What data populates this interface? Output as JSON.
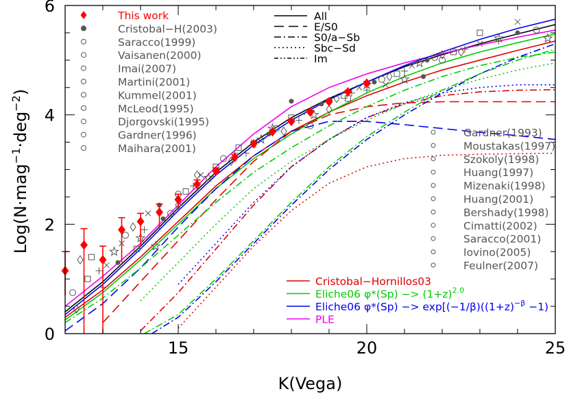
{
  "chart_data": {
    "type": "line",
    "xlabel": "K(Vega)",
    "ylabel_text": "Log(N·mag",
    "ylabel_sup1": "−1",
    "ylabel_mid": "·deg",
    "ylabel_sup2": "−2",
    "ylabel_end": ")",
    "xlim": [
      12,
      25
    ],
    "ylim": [
      0,
      6
    ],
    "xticks": [
      15,
      20,
      25
    ],
    "yticks": [
      0,
      2,
      4,
      6
    ],
    "line_style_legend": [
      "All",
      "E/S0",
      "S0/a−Sb",
      "Sbc−Sd",
      "Im"
    ],
    "model_legend": [
      {
        "label": "Cristobal−Hornillos03",
        "color": "#e00000"
      },
      {
        "label": "Eliche06 φ*(Sp) −> (1+z)^2.0",
        "color": "#00cc00"
      },
      {
        "label": "Eliche06 φ*(Sp) −> exp[(−1/β)((1+z)^−β −1)",
        "color": "#0000ee"
      },
      {
        "label": "PLE",
        "color": "#ee00ee"
      }
    ],
    "legend_left": [
      {
        "label": "This work",
        "color": "#ff0000"
      },
      {
        "label": "Cristobal−H(2003)",
        "color": "#555555"
      },
      {
        "label": "Saracco(1999)",
        "color": "#555555"
      },
      {
        "label": "Vaisanen(2000)",
        "color": "#555555"
      },
      {
        "label": "Imai(2007)",
        "color": "#555555"
      },
      {
        "label": "Martini(2001)",
        "color": "#555555"
      },
      {
        "label": "Kummel(2001)",
        "color": "#555555"
      },
      {
        "label": "McLeod(1995)",
        "color": "#555555"
      },
      {
        "label": "Djorgovski(1995)",
        "color": "#555555"
      },
      {
        "label": "Gardner(1996)",
        "color": "#555555"
      },
      {
        "label": "Maihara(2001)",
        "color": "#555555"
      }
    ],
    "legend_right": [
      {
        "label": "Gardner(1993)"
      },
      {
        "label": "Moustakas(1997)"
      },
      {
        "label": "Szokoly(1998)"
      },
      {
        "label": "Huang(1997)"
      },
      {
        "label": "Mizenaki(1998)"
      },
      {
        "label": "Huang(2001)"
      },
      {
        "label": "Bershady(1998)"
      },
      {
        "label": "Cimatti(2002)"
      },
      {
        "label": "Saracco(2001)"
      },
      {
        "label": "Iovino(2005)"
      },
      {
        "label": "Feulner(2007)"
      }
    ],
    "this_work": {
      "x": [
        12.0,
        12.5,
        13.0,
        13.5,
        14.0,
        14.5,
        15.0,
        15.5,
        16.0,
        16.5,
        17.0,
        17.5,
        18.0,
        18.5,
        19.0,
        19.5,
        20.0
      ],
      "y": [
        1.15,
        1.62,
        1.35,
        1.9,
        2.05,
        2.22,
        2.45,
        2.73,
        2.97,
        3.22,
        3.47,
        3.69,
        3.88,
        4.05,
        4.24,
        4.42,
        4.58
      ],
      "yerr_low": [
        0.45,
        1.62,
        1.35,
        0.6,
        0.45,
        0.3,
        0.15,
        0.1,
        0.07,
        0.05,
        0.04,
        0.03,
        0.03,
        0.03,
        0.03,
        0.03,
        0.03
      ],
      "yerr_high": [
        0.35,
        0.3,
        0.25,
        0.22,
        0.15,
        0.15,
        0.1,
        0.08,
        0.06,
        0.05,
        0.04,
        0.03,
        0.03,
        0.03,
        0.03,
        0.03,
        0.03
      ]
    },
    "literature_points": {
      "x": [
        12.2,
        12.4,
        12.7,
        12.9,
        13.1,
        13.3,
        13.4,
        13.6,
        13.8,
        13.9,
        14.1,
        14.2,
        14.4,
        14.6,
        14.8,
        15.0,
        15.2,
        15.4,
        15.6,
        15.8,
        16.0,
        16.2,
        16.4,
        16.6,
        16.8,
        17.0,
        17.2,
        17.4,
        17.6,
        17.8,
        18.0,
        18.2,
        18.4,
        18.6,
        18.8,
        19.0,
        19.2,
        19.4,
        19.6,
        19.8,
        20.0,
        20.2,
        20.4,
        20.6,
        20.8,
        21.0,
        21.2,
        21.4,
        21.6,
        21.8,
        22.0,
        22.3,
        22.6,
        23.0,
        23.5,
        24.0,
        24.5,
        12.3,
        12.6,
        13.0,
        13.5,
        14.0,
        14.5,
        15.0,
        15.5,
        16.0,
        16.5,
        17.0,
        17.5,
        18.0,
        18.5,
        19.0,
        19.5,
        20.0,
        20.5,
        21.0,
        21.5,
        22.0,
        22.5,
        23.0,
        23.5,
        24.0,
        24.8
      ],
      "y": [
        0.75,
        1.35,
        1.4,
        1.15,
        1.25,
        1.5,
        1.3,
        1.8,
        1.95,
        1.55,
        1.9,
        2.2,
        1.6,
        2.1,
        2.2,
        2.35,
        2.6,
        2.7,
        2.9,
        2.85,
        3.0,
        3.2,
        3.15,
        3.4,
        3.3,
        3.5,
        3.55,
        3.65,
        3.75,
        3.7,
        3.95,
        3.9,
        4.05,
        4.0,
        4.2,
        4.25,
        4.3,
        4.35,
        4.4,
        4.5,
        4.55,
        4.6,
        4.65,
        4.7,
        4.75,
        4.8,
        4.9,
        4.95,
        5.0,
        5.05,
        5.1,
        5.15,
        5.2,
        5.3,
        5.4,
        5.5,
        5.55,
        0.45,
        1.0,
        0.85,
        1.65,
        1.75,
        2.35,
        2.55,
        2.9,
        3.05,
        3.3,
        3.45,
        3.75,
        4.25,
        3.8,
        4.1,
        4.3,
        4.45,
        4.55,
        4.65,
        4.7,
        5.0,
        5.15,
        5.5,
        5.35,
        5.7,
        5.4
      ]
    },
    "series": [
      {
        "name": "All",
        "style": "solid",
        "color": "#000000",
        "x": [
          12,
          13,
          14,
          15,
          16,
          17,
          18,
          19,
          20,
          21,
          22,
          23,
          24,
          25
        ],
        "y": [
          0.4,
          0.95,
          1.6,
          2.3,
          2.95,
          3.5,
          3.95,
          4.3,
          4.6,
          4.88,
          5.1,
          5.3,
          5.48,
          5.65
        ]
      },
      {
        "name": "PLE",
        "style": "solid",
        "color": "#ee00ee",
        "x": [
          12,
          13,
          14,
          15,
          16,
          17,
          18,
          19,
          20,
          21,
          22,
          23,
          24,
          25
        ],
        "y": [
          0.5,
          1.05,
          1.65,
          2.35,
          3.05,
          3.65,
          4.15,
          4.5,
          4.75,
          4.95,
          5.12,
          5.28,
          5.42,
          5.55
        ]
      },
      {
        "name": "Blue All",
        "style": "solid",
        "color": "#0000ee",
        "x": [
          12,
          13,
          14,
          15,
          16,
          17,
          18,
          19,
          20,
          21,
          22,
          23,
          24,
          25
        ],
        "y": [
          0.35,
          0.9,
          1.55,
          2.25,
          2.9,
          3.45,
          3.9,
          4.28,
          4.6,
          4.9,
          5.15,
          5.38,
          5.58,
          5.75
        ]
      },
      {
        "name": "Red All",
        "style": "solid",
        "color": "#e00000",
        "x": [
          12,
          13,
          14,
          15,
          16,
          17,
          18,
          19,
          20,
          21,
          22,
          23,
          24,
          25
        ],
        "y": [
          0.3,
          0.8,
          1.4,
          2.05,
          2.7,
          3.25,
          3.7,
          4.05,
          4.35,
          4.6,
          4.82,
          5.0,
          5.18,
          5.35
        ]
      },
      {
        "name": "Green All",
        "style": "solid",
        "color": "#00cc00",
        "x": [
          12,
          13,
          14,
          15,
          16,
          17,
          18,
          19,
          20,
          21,
          22,
          23,
          24,
          25
        ],
        "y": [
          0.25,
          0.75,
          1.35,
          2.0,
          2.65,
          3.2,
          3.65,
          4.05,
          4.4,
          4.7,
          4.95,
          5.15,
          5.32,
          5.48
        ]
      },
      {
        "name": "Blue E/S0",
        "style": "dash",
        "color": "#0000ee",
        "x": [
          12,
          13,
          14,
          15,
          16,
          17,
          18,
          19,
          20,
          21,
          22,
          23,
          24,
          25
        ],
        "y": [
          0.05,
          0.55,
          1.2,
          1.95,
          2.65,
          3.25,
          3.7,
          3.88,
          3.88,
          3.82,
          3.75,
          3.68,
          3.62,
          3.55
        ]
      },
      {
        "name": "Red E/S0",
        "style": "dash",
        "color": "#e00000",
        "x": [
          13,
          14,
          15,
          16,
          17,
          18,
          19,
          20,
          21,
          22,
          23,
          24,
          25
        ],
        "y": [
          0.2,
          0.95,
          1.7,
          2.45,
          3.15,
          3.7,
          4.0,
          4.15,
          4.22,
          4.24,
          4.24,
          4.24,
          4.24
        ]
      },
      {
        "name": "Red S0/a-Sb",
        "style": "dashdot",
        "color": "#e00000",
        "x": [
          14,
          15,
          16,
          17,
          18,
          19,
          20,
          21,
          22,
          23,
          24,
          25
        ],
        "y": [
          0.05,
          0.75,
          1.55,
          2.35,
          3.05,
          3.55,
          3.95,
          4.2,
          4.35,
          4.42,
          4.45,
          4.46
        ]
      },
      {
        "name": "Green S0/a-Sb",
        "style": "dashdot",
        "color": "#00cc00",
        "x": [
          12,
          13,
          14,
          15,
          16,
          17,
          18,
          19,
          20,
          21,
          22,
          23,
          24,
          25
        ],
        "y": [
          0.2,
          0.65,
          1.2,
          1.8,
          2.4,
          2.95,
          3.4,
          3.8,
          4.15,
          4.45,
          4.7,
          4.9,
          5.05,
          5.15
        ]
      },
      {
        "name": "Blue Sbc-Sd",
        "style": "dot",
        "color": "#0000ee",
        "x": [
          15,
          16,
          17,
          18,
          19,
          20,
          21,
          22,
          23,
          24,
          25
        ],
        "y": [
          0.9,
          1.65,
          2.4,
          3.05,
          3.55,
          3.95,
          4.22,
          4.4,
          4.5,
          4.55,
          4.55
        ]
      },
      {
        "name": "Green Sbc-Sd",
        "style": "dot",
        "color": "#00cc00",
        "x": [
          14,
          15,
          16,
          17,
          18,
          19,
          20,
          21,
          22,
          23,
          24,
          25
        ],
        "y": [
          0.6,
          1.3,
          2.0,
          2.65,
          3.15,
          3.55,
          3.9,
          4.2,
          4.45,
          4.65,
          4.82,
          4.95
        ]
      },
      {
        "name": "Red Sbc-Sd",
        "style": "dot",
        "color": "#e00000",
        "x": [
          15,
          16,
          17,
          18,
          19,
          20,
          21,
          22,
          23,
          24,
          25
        ],
        "y": [
          0.1,
          0.85,
          1.6,
          2.25,
          2.75,
          3.05,
          3.2,
          3.26,
          3.28,
          3.29,
          3.3
        ]
      },
      {
        "name": "Blue Im",
        "style": "dashdot",
        "color": "#0000ee",
        "x": [
          14.3,
          15,
          16,
          17,
          18,
          19,
          20,
          21,
          22,
          23,
          24,
          25
        ],
        "y": [
          0.0,
          0.3,
          0.95,
          1.65,
          2.35,
          3.0,
          3.55,
          4.0,
          4.4,
          4.75,
          5.05,
          5.3
        ]
      },
      {
        "name": "Green Im",
        "style": "dashdot",
        "color": "#00cc00",
        "x": [
          14.1,
          15,
          16,
          17,
          18,
          19,
          20,
          21,
          22,
          23,
          24,
          25
        ],
        "y": [
          0.0,
          0.35,
          1.0,
          1.7,
          2.4,
          3.05,
          3.6,
          4.05,
          4.45,
          4.75,
          5.0,
          5.2
        ]
      }
    ]
  }
}
